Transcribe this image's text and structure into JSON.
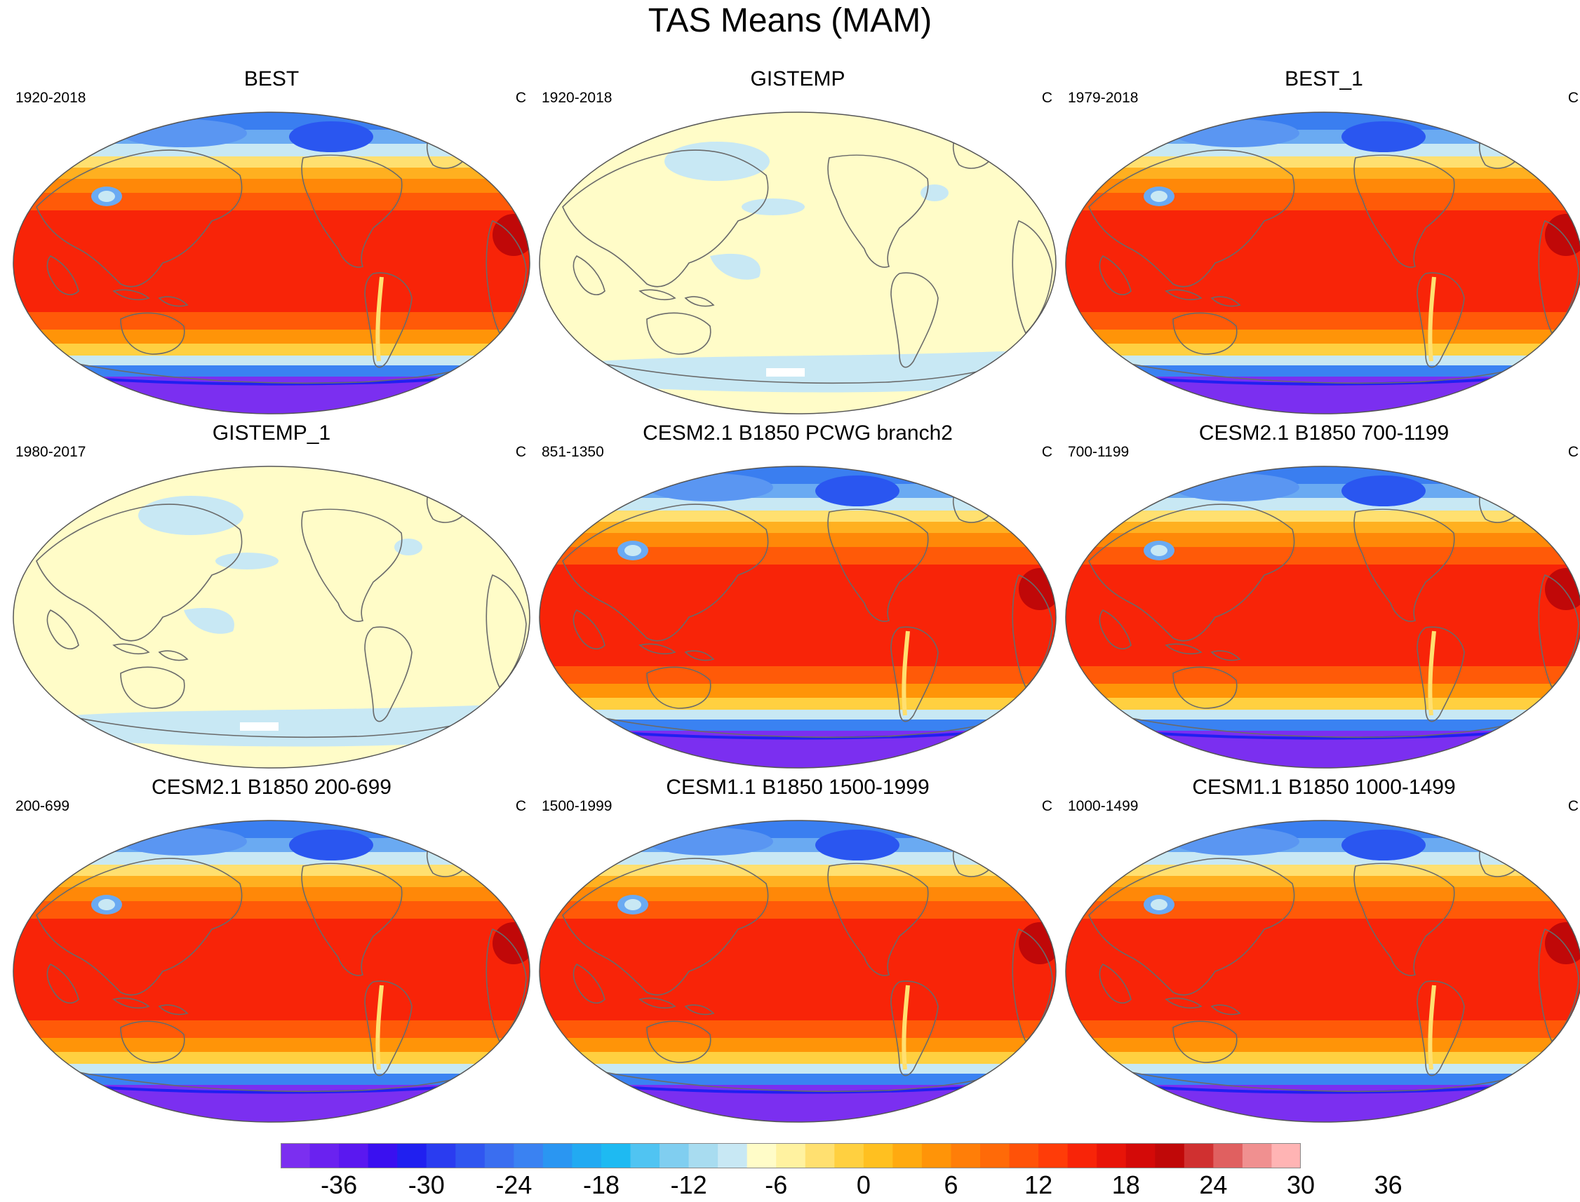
{
  "figure": {
    "title": "TAS Means (MAM)"
  },
  "panels": [
    {
      "title": "BEST",
      "period": "1920-2018",
      "unit": "C",
      "style": "full"
    },
    {
      "title": "GISTEMP",
      "period": "1920-2018",
      "unit": "C",
      "style": "anomaly"
    },
    {
      "title": "BEST_1",
      "period": "1979-2018",
      "unit": "C",
      "style": "full"
    },
    {
      "title": "GISTEMP_1",
      "period": "1980-2017",
      "unit": "C",
      "style": "anomaly"
    },
    {
      "title": "CESM2.1 B1850 PCWG branch2",
      "period": "851-1350",
      "unit": "C",
      "style": "full"
    },
    {
      "title": "CESM2.1 B1850 700-1199",
      "period": "700-1199",
      "unit": "C",
      "style": "full"
    },
    {
      "title": "CESM2.1 B1850 200-699",
      "period": "200-699",
      "unit": "C",
      "style": "full"
    },
    {
      "title": "CESM1.1 B1850 1500-1999",
      "period": "1500-1999",
      "unit": "C",
      "style": "full"
    },
    {
      "title": "CESM1.1 B1850 1000-1499",
      "period": "1000-1499",
      "unit": "C",
      "style": "full"
    }
  ],
  "legend": {
    "colors": [
      "#7b2ff0",
      "#6a22f0",
      "#5a18f0",
      "#3a10f0",
      "#2020f0",
      "#2a3cf0",
      "#3056f0",
      "#3a6ef0",
      "#3a82f2",
      "#2a96f2",
      "#22aaf2",
      "#1ebaf2",
      "#50c4f2",
      "#80cef0",
      "#a8dcf0",
      "#c8e8f4",
      "#fffcc8",
      "#fff2a0",
      "#ffe070",
      "#ffd040",
      "#ffc020",
      "#ffaa10",
      "#ff9408",
      "#ff7e08",
      "#ff6a08",
      "#ff5208",
      "#ff3c08",
      "#f82408",
      "#e81408",
      "#d40a08",
      "#c00808",
      "#d03030",
      "#e06060",
      "#f09090",
      "#ffb4b4"
    ],
    "tick_labels": [
      "-36",
      "-30",
      "-24",
      "-18",
      "-12",
      "-6",
      "0",
      "6",
      "12",
      "18",
      "24",
      "30",
      "36"
    ]
  }
}
